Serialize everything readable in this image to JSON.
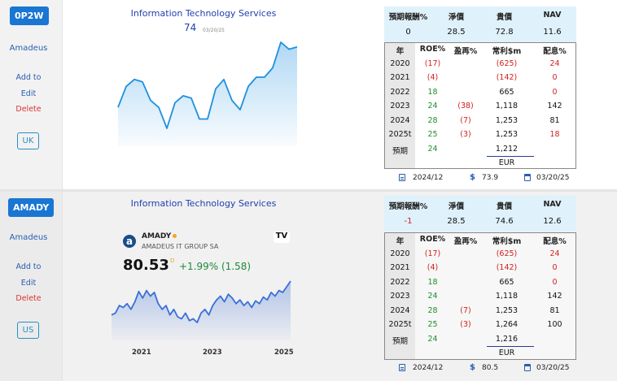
{
  "cards": [
    {
      "ticker": "0P2W",
      "company_link": "Amadeus",
      "actions": {
        "add": "Add to",
        "edit": "Edit",
        "delete": "Delete"
      },
      "market": "UK",
      "sector_title": "Information Technology Services",
      "price": "74",
      "price_date": "03/20/25",
      "summary_headers": [
        "預期報酬%",
        "淨價",
        "貴價",
        "NAV"
      ],
      "summary_values": [
        "0",
        "28.5",
        "72.8",
        "11.6"
      ],
      "table_headers": [
        "年",
        "ROE%",
        "盈再%",
        "常利$m",
        "配息%"
      ],
      "rows": [
        [
          "2020",
          "(17)",
          "",
          "(625)",
          "24"
        ],
        [
          "2021",
          "(4)",
          "",
          "(142)",
          "0"
        ],
        [
          "2022",
          "18",
          "",
          "665",
          "0"
        ],
        [
          "2023",
          "24",
          "(38)",
          "1,118",
          "142"
        ],
        [
          "2024",
          "28",
          "(7)",
          "1,253",
          "81"
        ],
        [
          "2025t",
          "25",
          "(3)",
          "1,253",
          "18"
        ],
        [
          "預期",
          "24",
          "",
          "1,212",
          ""
        ]
      ],
      "currency": "EUR",
      "footer": {
        "period": "2024/12",
        "value": "73.9",
        "date": "03/20/25"
      },
      "chart_data": {
        "type": "area",
        "title": "",
        "values": [
          55,
          64,
          67,
          66,
          58,
          55,
          46,
          57,
          60,
          59,
          50,
          50,
          63,
          67,
          58,
          54,
          64,
          68,
          68,
          72,
          83,
          80,
          81
        ],
        "color": "#1e90e0"
      }
    },
    {
      "ticker": "AMADY",
      "company_link": "Amadeus",
      "actions": {
        "add": "Add to",
        "edit": "Edit",
        "delete": "Delete"
      },
      "market": "US",
      "sector_title": "Information Technology Services",
      "widget": {
        "logo_letter": "a",
        "symbol": "AMADY",
        "company": "AMADEUS IT GROUP SA",
        "price": "80.53",
        "price_sup": "D",
        "change": "+1.99% (1.58)",
        "brand": "TV",
        "years": [
          "2021",
          "2023",
          "2025"
        ]
      },
      "summary_headers": [
        "預期報酬%",
        "淨價",
        "貴價",
        "NAV"
      ],
      "summary_values": [
        "-1",
        "28.5",
        "74.6",
        "12.6"
      ],
      "table_headers": [
        "年",
        "ROE%",
        "盈再%",
        "常利$m",
        "配息%"
      ],
      "rows": [
        [
          "2020",
          "(17)",
          "",
          "(625)",
          "24"
        ],
        [
          "2021",
          "(4)",
          "",
          "(142)",
          "0"
        ],
        [
          "2022",
          "18",
          "",
          "665",
          "0"
        ],
        [
          "2023",
          "24",
          "",
          "1,118",
          "142"
        ],
        [
          "2024",
          "28",
          "(7)",
          "1,253",
          "81"
        ],
        [
          "2025t",
          "25",
          "(3)",
          "1,264",
          "100"
        ],
        [
          "預期",
          "24",
          "",
          "1,216",
          ""
        ]
      ],
      "currency": "EUR",
      "footer": {
        "period": "2024/12",
        "value": "80.5",
        "date": "03/20/25"
      },
      "chart_data": {
        "type": "area",
        "title": "",
        "x_labels": [
          "2021",
          "2023",
          "2025"
        ],
        "values": [
          60,
          62,
          70,
          68,
          72,
          66,
          74,
          85,
          78,
          86,
          80,
          84,
          72,
          66,
          70,
          60,
          66,
          58,
          56,
          62,
          54,
          56,
          52,
          62,
          66,
          60,
          70,
          76,
          80,
          74,
          82,
          78,
          72,
          76,
          70,
          74,
          68,
          75,
          72,
          79,
          76,
          84,
          80,
          86,
          84,
          90,
          96
        ],
        "color": "#3a6fd8"
      }
    }
  ]
}
